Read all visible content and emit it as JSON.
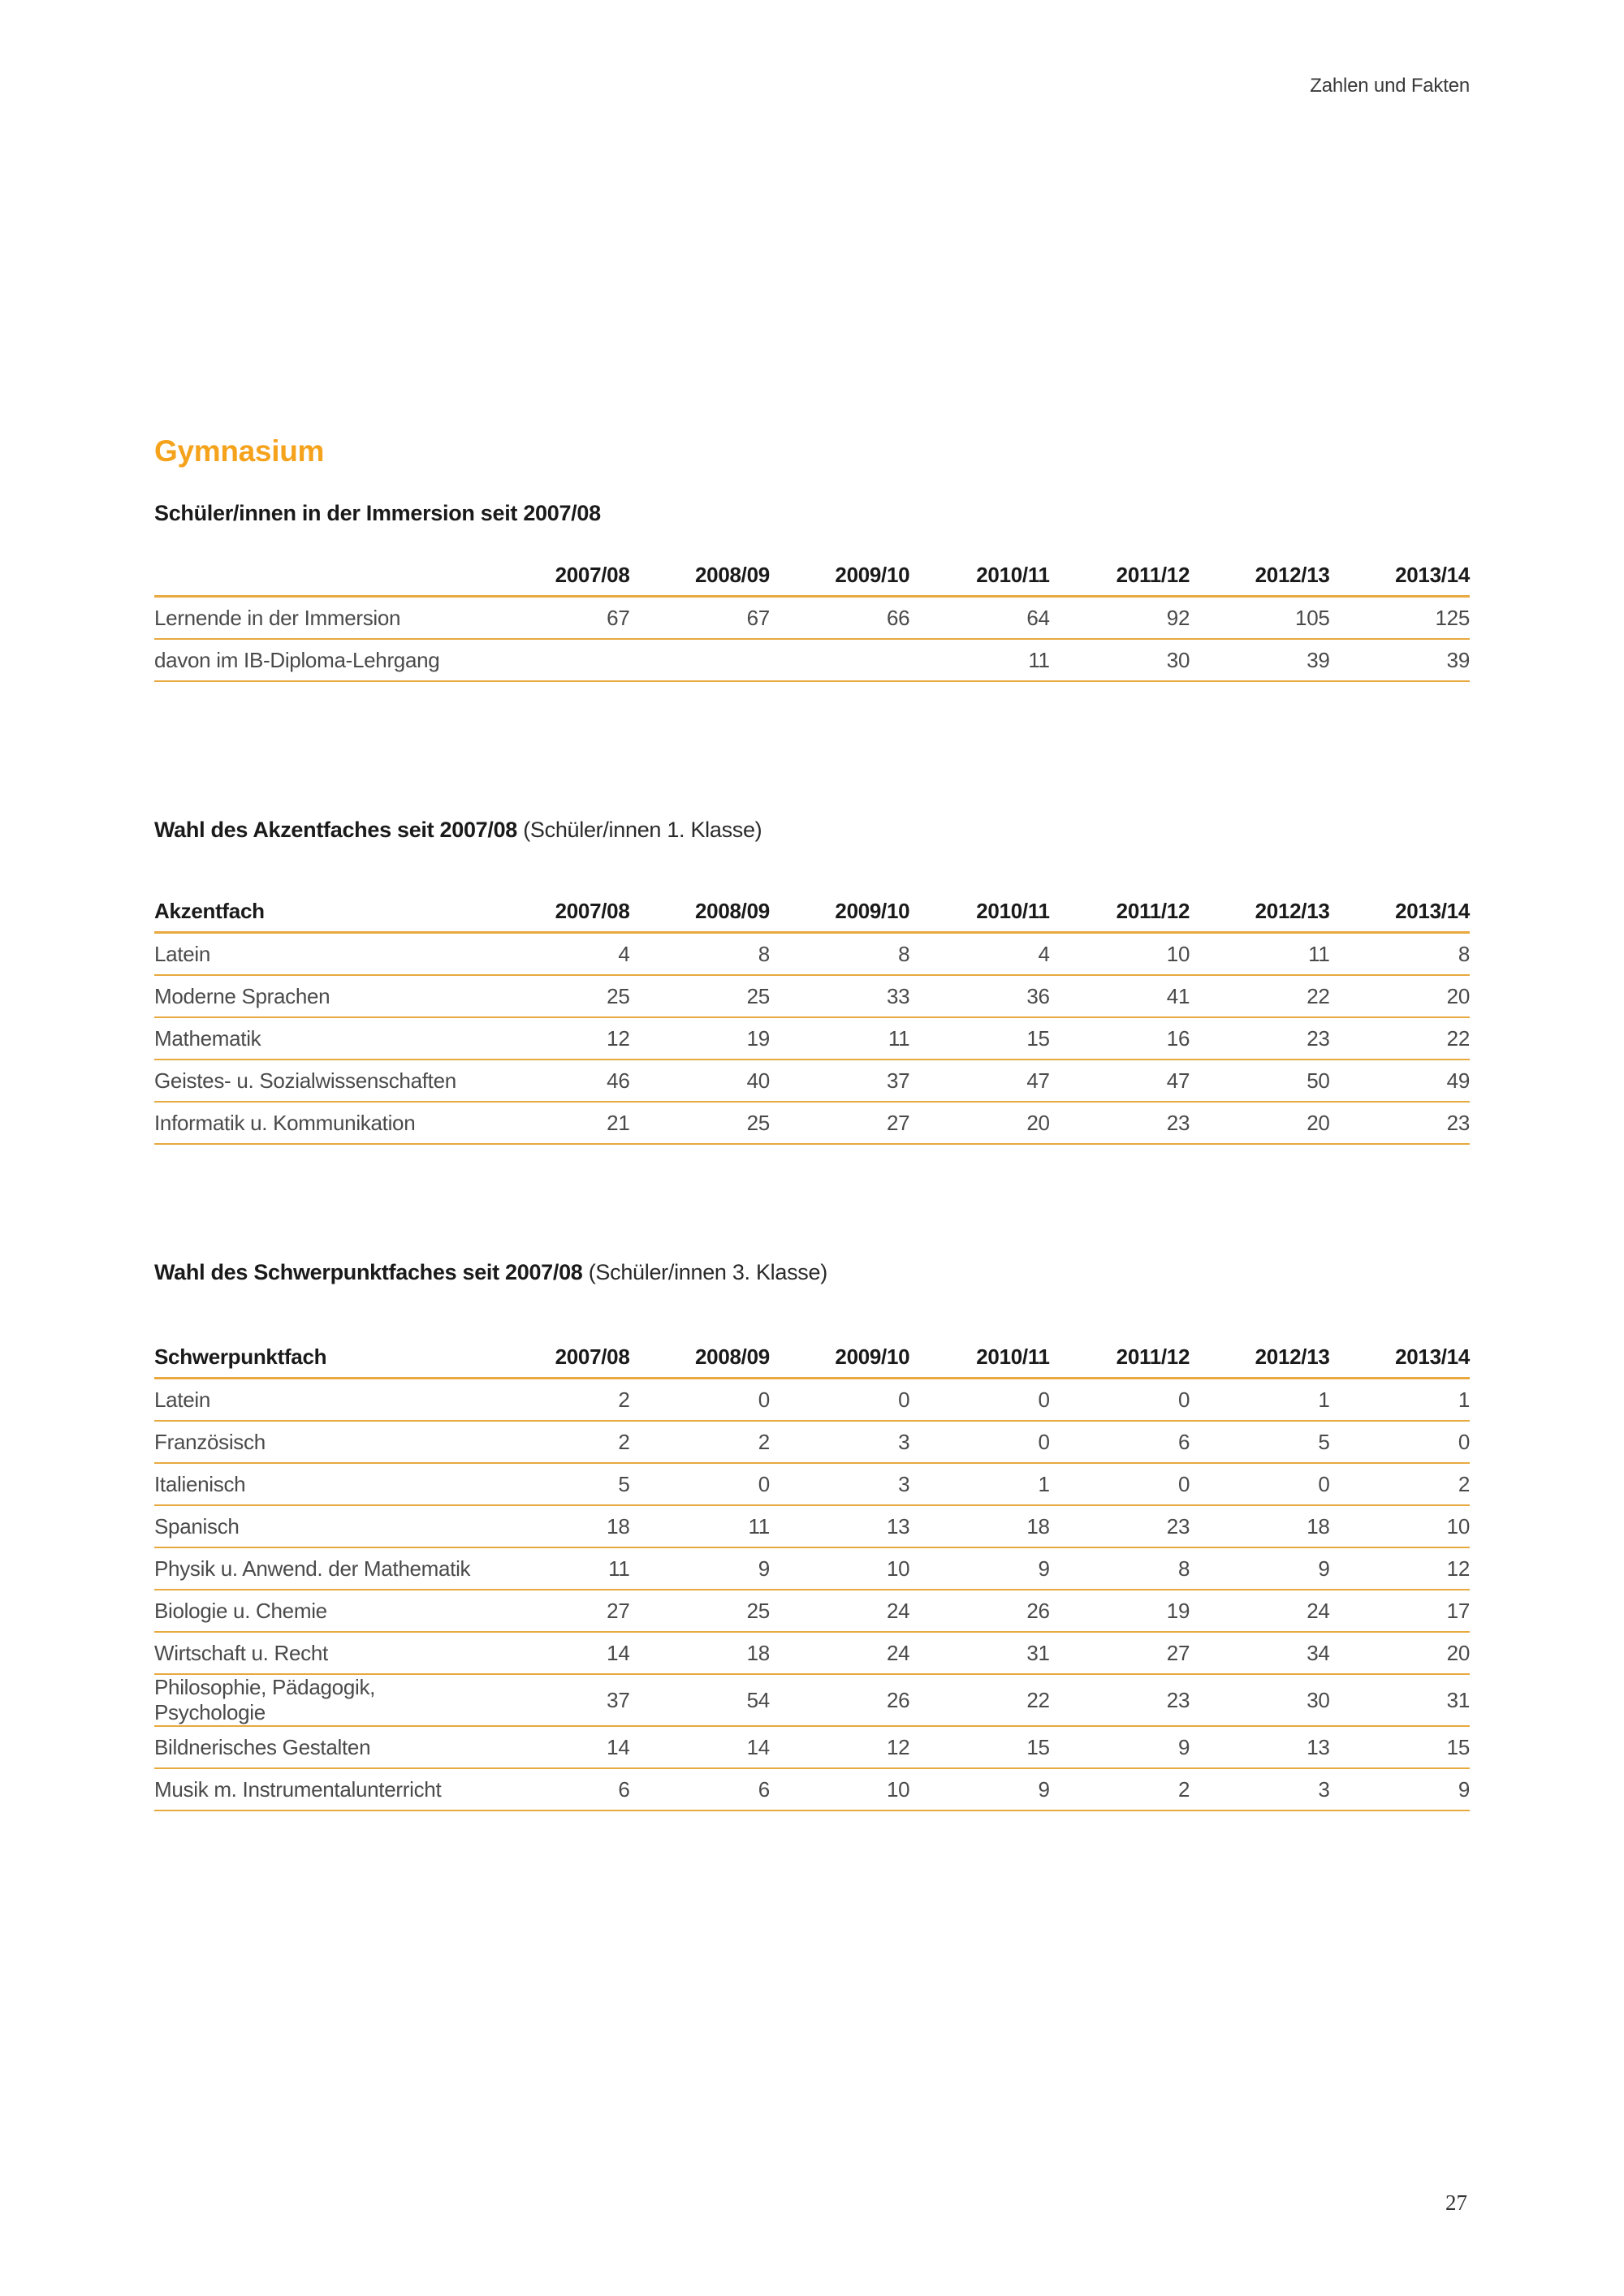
{
  "page": {
    "header_right": "Zahlen und Fakten",
    "title": "Gymnasium",
    "page_number": "27"
  },
  "colors": {
    "accent_orange": "#F5A21C",
    "table_rule_orange": "#E8A93F",
    "body_text": "#4a4a4a",
    "heading_text": "#1a1a1a"
  },
  "years": [
    "2007/08",
    "2008/09",
    "2009/10",
    "2010/11",
    "2011/12",
    "2012/13",
    "2013/14"
  ],
  "tables": [
    {
      "title_bold": "Schüler/innen in der Immersion seit 2007/08",
      "title_regular": "",
      "label_header": "",
      "rows": [
        {
          "label": "Lernende in der Immersion",
          "values": [
            "67",
            "67",
            "66",
            "64",
            "92",
            "105",
            "125"
          ]
        },
        {
          "label": "davon im IB-Diploma-Lehrgang",
          "values": [
            "",
            "",
            "",
            "11",
            "30",
            "39",
            "39"
          ]
        }
      ]
    },
    {
      "title_bold": "Wahl des Akzentfaches seit 2007/08",
      "title_regular": "(Schüler/innen 1. Klasse)",
      "label_header": "Akzentfach",
      "rows": [
        {
          "label": "Latein",
          "values": [
            "4",
            "8",
            "8",
            "4",
            "10",
            "11",
            "8"
          ]
        },
        {
          "label": "Moderne Sprachen",
          "values": [
            "25",
            "25",
            "33",
            "36",
            "41",
            "22",
            "20"
          ]
        },
        {
          "label": "Mathematik",
          "values": [
            "12",
            "19",
            "11",
            "15",
            "16",
            "23",
            "22"
          ]
        },
        {
          "label": "Geistes- u. Sozialwissenschaften",
          "values": [
            "46",
            "40",
            "37",
            "47",
            "47",
            "50",
            "49"
          ]
        },
        {
          "label": "Informatik u. Kommunikation",
          "values": [
            "21",
            "25",
            "27",
            "20",
            "23",
            "20",
            "23"
          ]
        }
      ]
    },
    {
      "title_bold": "Wahl des Schwerpunktfaches seit 2007/08",
      "title_regular": "(Schüler/innen 3. Klasse)",
      "label_header": "Schwerpunktfach",
      "rows": [
        {
          "label": "Latein",
          "values": [
            "2",
            "0",
            "0",
            "0",
            "0",
            "1",
            "1"
          ]
        },
        {
          "label": "Französisch",
          "values": [
            "2",
            "2",
            "3",
            "0",
            "6",
            "5",
            "0"
          ]
        },
        {
          "label": "Italienisch",
          "values": [
            "5",
            "0",
            "3",
            "1",
            "0",
            "0",
            "2"
          ]
        },
        {
          "label": "Spanisch",
          "values": [
            "18",
            "11",
            "13",
            "18",
            "23",
            "18",
            "10"
          ]
        },
        {
          "label": "Physik u. Anwend. der Mathematik",
          "values": [
            "11",
            "9",
            "10",
            "9",
            "8",
            "9",
            "12"
          ]
        },
        {
          "label": "Biologie u. Chemie",
          "values": [
            "27",
            "25",
            "24",
            "26",
            "19",
            "24",
            "17"
          ]
        },
        {
          "label": "Wirtschaft u. Recht",
          "values": [
            "14",
            "18",
            "24",
            "31",
            "27",
            "34",
            "20"
          ]
        },
        {
          "label": "Philosophie, Pädagogik, Psychologie",
          "values": [
            "37",
            "54",
            "26",
            "22",
            "23",
            "30",
            "31"
          ]
        },
        {
          "label": "Bildnerisches Gestalten",
          "values": [
            "14",
            "14",
            "12",
            "15",
            "9",
            "13",
            "15"
          ]
        },
        {
          "label": "Musik m. Instrumentalunterricht",
          "values": [
            "6",
            "6",
            "10",
            "9",
            "2",
            "3",
            "9"
          ]
        }
      ]
    }
  ]
}
